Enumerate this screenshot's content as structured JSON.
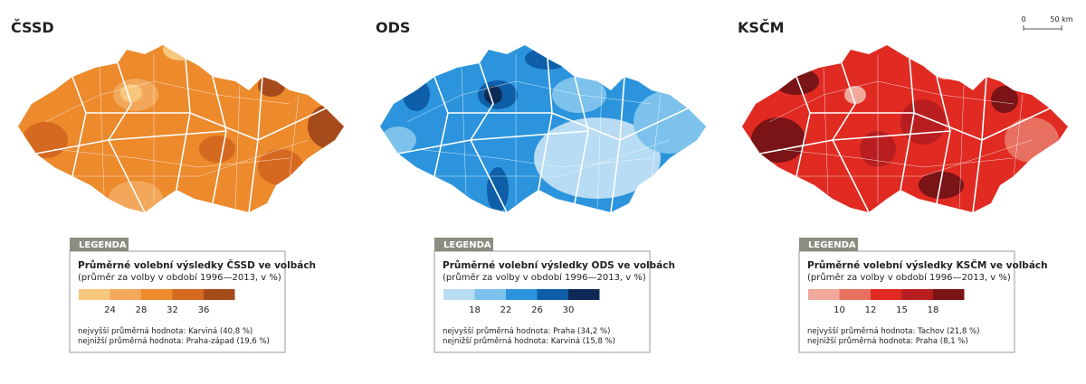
{
  "scale_bar": {
    "labels": [
      "0",
      "50 km"
    ]
  },
  "maps": [
    {
      "title": "ČSSD",
      "legend": {
        "header": "LEGENDA",
        "title": "Průměrné volební výsledky ČSSD ve volbách",
        "subtitle": "(průměr za volby v období 1996—2013, v %)",
        "colors": [
          "#f7c77e",
          "#f2a75a",
          "#ec8a2c",
          "#d5691f",
          "#a64b1c"
        ],
        "breaks": [
          24,
          28,
          32,
          36
        ],
        "notes": [
          "nejvyšší průměrná hodnota: Karviná (40,8 %)",
          "nejnižší průměrná hodnota: Praha-západ (19,6 %)"
        ]
      }
    },
    {
      "title": "ODS",
      "legend": {
        "header": "LEGENDA",
        "title": "Průměrné volební výsledky ODS ve volbách",
        "subtitle": "(průměr za volby v období 1996—2013, v %)",
        "colors": [
          "#b8dcf3",
          "#7cc2ec",
          "#2b94dc",
          "#0e5ea8",
          "#0c2a55"
        ],
        "breaks": [
          18,
          22,
          26,
          30
        ],
        "notes": [
          "nejvyšší průměrná hodnota: Praha (34,2 %)",
          "nejnižší průměrná hodnota: Karviná (15,8 %)"
        ]
      }
    },
    {
      "title": "KSČM",
      "legend": {
        "header": "LEGENDA",
        "title": "Průměrné volební výsledky KSČM ve volbách",
        "subtitle": "(průměr za volby v období 1996—2013, v %)",
        "colors": [
          "#f0a99a",
          "#e87060",
          "#e02a22",
          "#b81e1f",
          "#7a1416"
        ],
        "breaks": [
          10,
          12,
          15,
          18
        ],
        "notes": [
          "nejvyšší průměrná hodnota: Tachov (21,8 %)",
          "nejnižší průměrná hodnota: Praha (8,1 %)"
        ]
      }
    }
  ]
}
